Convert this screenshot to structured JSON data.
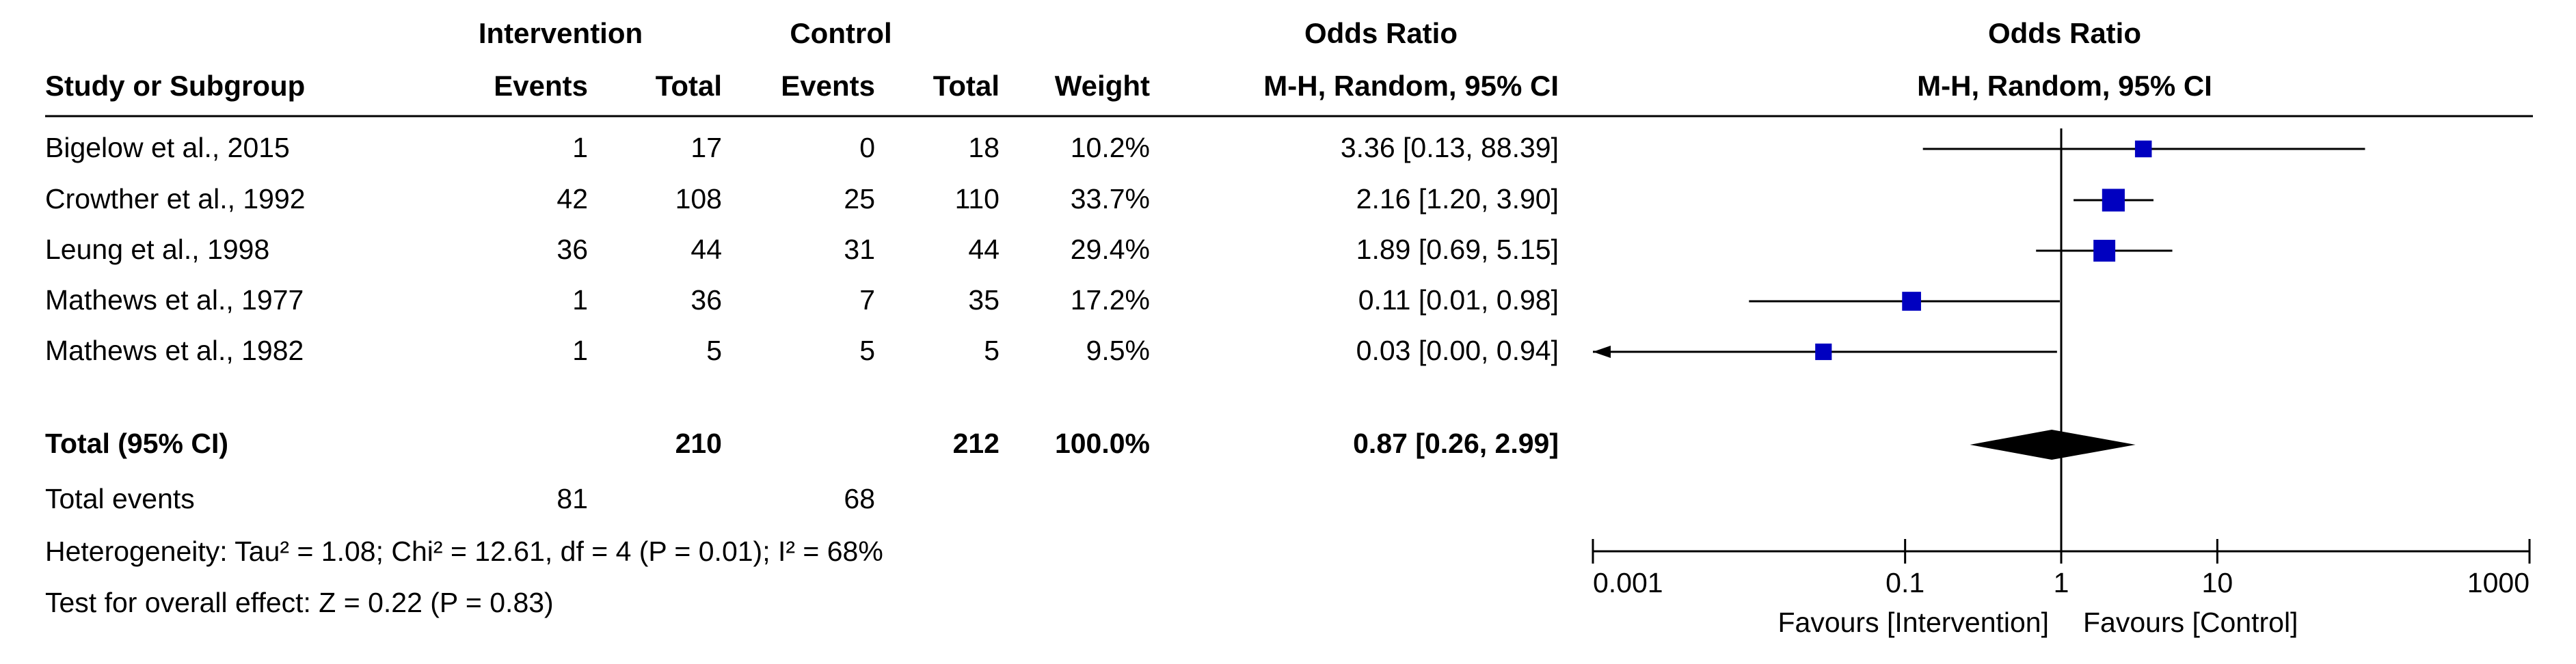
{
  "header": {
    "group_intervention": "Intervention",
    "group_control": "Control",
    "odds_ratio_table": "Odds Ratio",
    "odds_ratio_plot": "Odds Ratio",
    "col_study": "Study or Subgroup",
    "col_int_events": "Events",
    "col_int_total": "Total",
    "col_ctl_events": "Events",
    "col_ctl_total": "Total",
    "col_weight": "Weight",
    "col_ci_table": "M-H, Random, 95% CI",
    "col_ci_plot": "M-H, Random, 95% CI"
  },
  "studies": [
    {
      "name": "Bigelow et al., 2015",
      "int_events": "1",
      "int_total": "17",
      "ctl_events": "0",
      "ctl_total": "18",
      "weight": "10.2%",
      "ci_text": "3.36 [0.13, 88.39]"
    },
    {
      "name": "Crowther et al., 1992",
      "int_events": "42",
      "int_total": "108",
      "ctl_events": "25",
      "ctl_total": "110",
      "weight": "33.7%",
      "ci_text": "2.16 [1.20, 3.90]"
    },
    {
      "name": "Leung et al., 1998",
      "int_events": "36",
      "int_total": "44",
      "ctl_events": "31",
      "ctl_total": "44",
      "weight": "29.4%",
      "ci_text": "1.89 [0.69, 5.15]"
    },
    {
      "name": "Mathews et al., 1977",
      "int_events": "1",
      "int_total": "36",
      "ctl_events": "7",
      "ctl_total": "35",
      "weight": "17.2%",
      "ci_text": "0.11 [0.01, 0.98]"
    },
    {
      "name": "Mathews et al., 1982",
      "int_events": "1",
      "int_total": "5",
      "ctl_events": "5",
      "ctl_total": "5",
      "weight": "9.5%",
      "ci_text": "0.03 [0.00, 0.94]"
    }
  ],
  "total": {
    "label": "Total (95% CI)",
    "int_total": "210",
    "ctl_total": "212",
    "weight": "100.0%",
    "ci_text": "0.87 [0.26, 2.99]"
  },
  "total_events": {
    "label": "Total events",
    "int_events": "81",
    "ctl_events": "68"
  },
  "heterogeneity": "Heterogeneity: Tau² = 1.08; Chi² = 12.61, df = 4 (P = 0.01); I² = 68%",
  "overall_effect": "Test for overall effect: Z = 0.22 (P = 0.83)",
  "axis": {
    "favours_left": "Favours [Intervention]",
    "favours_right": "Favours [Control]"
  },
  "colors": {
    "study_marker": "#0000c0",
    "diamond": "#000000",
    "line": "#000000"
  },
  "chart_data": {
    "type": "forest",
    "title": "Odds Ratio",
    "subtitle": "M-H, Random, 95% CI",
    "scale": "log",
    "xlim": [
      0.001,
      1000
    ],
    "ticks": [
      0.001,
      0.1,
      1,
      10,
      1000
    ],
    "tick_labels": [
      "0.001",
      "0.1",
      "1",
      "10",
      "1000"
    ],
    "reference_line": 1,
    "series": [
      {
        "study": "Bigelow et al., 2015",
        "or": 3.36,
        "lower": 0.13,
        "upper": 88.39,
        "weight": 10.2
      },
      {
        "study": "Crowther et al., 1992",
        "or": 2.16,
        "lower": 1.2,
        "upper": 3.9,
        "weight": 33.7
      },
      {
        "study": "Leung et al., 1998",
        "or": 1.89,
        "lower": 0.69,
        "upper": 5.15,
        "weight": 29.4
      },
      {
        "study": "Mathews et al., 1977",
        "or": 0.11,
        "lower": 0.01,
        "upper": 0.98,
        "weight": 17.2
      },
      {
        "study": "Mathews et al., 1982",
        "or": 0.03,
        "lower": 0.0,
        "upper": 0.94,
        "weight": 9.5
      }
    ],
    "pooled": {
      "or": 0.87,
      "lower": 0.26,
      "upper": 2.99
    }
  }
}
